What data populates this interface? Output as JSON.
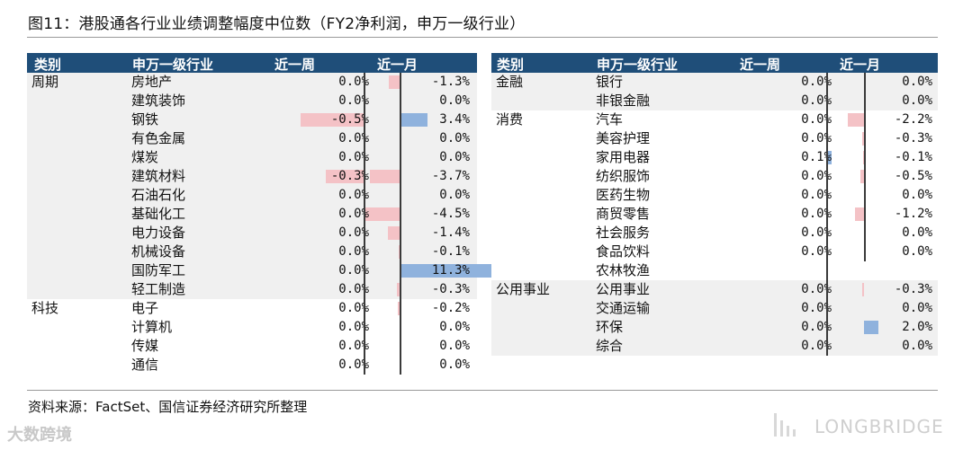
{
  "title": "图11：港股通各行业业绩调整幅度中位数（FY2净利润，申万一级行业）",
  "header": {
    "category": "类别",
    "industry": "申万一级行业",
    "week": "近一周",
    "month": "近一月"
  },
  "left_rows": [
    {
      "cat": "周期",
      "ind": "房地产",
      "week": 0.0,
      "w": "0.0%",
      "month": -1.3,
      "m": "-1.3%"
    },
    {
      "cat": "",
      "ind": "建筑装饰",
      "week": 0.0,
      "w": "0.0%",
      "month": 0.0,
      "m": "0.0%"
    },
    {
      "cat": "",
      "ind": "钢铁",
      "week": -0.5,
      "w": "-0.5%",
      "month": 3.4,
      "m": "3.4%"
    },
    {
      "cat": "",
      "ind": "有色金属",
      "week": 0.0,
      "w": "0.0%",
      "month": 0.0,
      "m": "0.0%"
    },
    {
      "cat": "",
      "ind": "煤炭",
      "week": 0.0,
      "w": "0.0%",
      "month": 0.0,
      "m": "0.0%"
    },
    {
      "cat": "",
      "ind": "建筑材料",
      "week": -0.3,
      "w": "-0.3%",
      "month": -3.7,
      "m": "-3.7%"
    },
    {
      "cat": "",
      "ind": "石油石化",
      "week": 0.0,
      "w": "0.0%",
      "month": 0.0,
      "m": "0.0%"
    },
    {
      "cat": "",
      "ind": "基础化工",
      "week": 0.0,
      "w": "0.0%",
      "month": -4.5,
      "m": "-4.5%"
    },
    {
      "cat": "",
      "ind": "电力设备",
      "week": 0.0,
      "w": "0.0%",
      "month": -1.4,
      "m": "-1.4%"
    },
    {
      "cat": "",
      "ind": "机械设备",
      "week": 0.0,
      "w": "0.0%",
      "month": -0.1,
      "m": "-0.1%"
    },
    {
      "cat": "",
      "ind": "国防军工",
      "week": 0.0,
      "w": "0.0%",
      "month": 11.3,
      "m": "11.3%"
    },
    {
      "cat": "",
      "ind": "轻工制造",
      "week": 0.0,
      "w": "0.0%",
      "month": -0.3,
      "m": "-0.3%"
    },
    {
      "cat": "科技",
      "ind": "电子",
      "week": 0.0,
      "w": "0.0%",
      "month": -0.2,
      "m": "-0.2%"
    },
    {
      "cat": "",
      "ind": "计算机",
      "week": 0.0,
      "w": "0.0%",
      "month": 0.0,
      "m": "0.0%"
    },
    {
      "cat": "",
      "ind": "传媒",
      "week": 0.0,
      "w": "0.0%",
      "month": 0.0,
      "m": "0.0%"
    },
    {
      "cat": "",
      "ind": "通信",
      "week": 0.0,
      "w": "0.0%",
      "month": 0.0,
      "m": "0.0%"
    }
  ],
  "right_rows": [
    {
      "cat": "金融",
      "ind": "银行",
      "week": 0.0,
      "w": "0.0%",
      "month": 0.0,
      "m": "0.0%"
    },
    {
      "cat": "",
      "ind": "非银金融",
      "week": 0.0,
      "w": "0.0%",
      "month": 0.0,
      "m": "0.0%"
    },
    {
      "cat": "消费",
      "ind": "汽车",
      "week": 0.0,
      "w": "0.0%",
      "month": -2.2,
      "m": "-2.2%"
    },
    {
      "cat": "",
      "ind": "美容护理",
      "week": 0.0,
      "w": "0.0%",
      "month": -0.3,
      "m": "-0.3%"
    },
    {
      "cat": "",
      "ind": "家用电器",
      "week": 0.1,
      "w": "0.1%",
      "month": -0.1,
      "m": "-0.1%"
    },
    {
      "cat": "",
      "ind": "纺织服饰",
      "week": 0.0,
      "w": "0.0%",
      "month": -0.5,
      "m": "-0.5%"
    },
    {
      "cat": "",
      "ind": "医药生物",
      "week": 0.0,
      "w": "0.0%",
      "month": 0.0,
      "m": "0.0%"
    },
    {
      "cat": "",
      "ind": "商贸零售",
      "week": 0.0,
      "w": "0.0%",
      "month": -1.2,
      "m": "-1.2%"
    },
    {
      "cat": "",
      "ind": "社会服务",
      "week": 0.0,
      "w": "0.0%",
      "month": 0.0,
      "m": "0.0%"
    },
    {
      "cat": "",
      "ind": "食品饮料",
      "week": 0.0,
      "w": "0.0%",
      "month": 0.0,
      "m": "0.0%"
    },
    {
      "cat": "",
      "ind": "农林牧渔",
      "week": null,
      "w": "",
      "month": null,
      "m": ""
    },
    {
      "cat": "公用事业",
      "ind": "公用事业",
      "week": 0.0,
      "w": "0.0%",
      "month": -0.3,
      "m": "-0.3%"
    },
    {
      "cat": "",
      "ind": "交通运输",
      "week": 0.0,
      "w": "0.0%",
      "month": 0.0,
      "m": "0.0%"
    },
    {
      "cat": "",
      "ind": "环保",
      "week": 0.0,
      "w": "0.0%",
      "month": 2.0,
      "m": "2.0%"
    },
    {
      "cat": "",
      "ind": "综合",
      "week": 0.0,
      "w": "0.0%",
      "month": 0.0,
      "m": "0.0%"
    }
  ],
  "colors": {
    "negative": "#f4c2c6",
    "positive": "#8fb2dd",
    "header": "#1f4e79",
    "shade": "#f0f0f0"
  },
  "source": "资料来源：FactSet、国信证券经济研究所整理",
  "watermark_left": "大数跨境",
  "watermark_right": "LONGBRIDGE"
}
